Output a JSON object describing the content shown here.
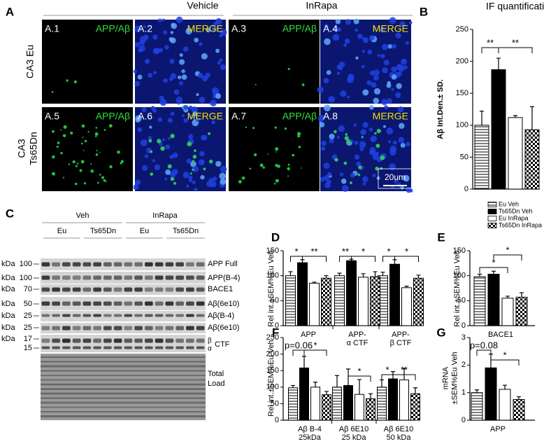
{
  "panel_a": {
    "letter": "A",
    "groups": [
      "Vehicle",
      "InRapa"
    ],
    "row_labels": [
      "CA3 Eu",
      "CA3\nTs65Dn"
    ],
    "tiles": [
      {
        "id": "A.1",
        "stain": "APP/Aβ"
      },
      {
        "id": "A.2",
        "stain": "MERGE"
      },
      {
        "id": "A.3",
        "stain": "APP/Aβ"
      },
      {
        "id": "A.4",
        "stain": "MERGE"
      },
      {
        "id": "A.5",
        "stain": "APP/Aβ"
      },
      {
        "id": "A.6",
        "stain": "MERGE"
      },
      {
        "id": "A.7",
        "stain": "APP/Aβ"
      },
      {
        "id": "A.8",
        "stain": "MERGE"
      }
    ],
    "scale_bar": "20um"
  },
  "panel_c": {
    "letter": "C",
    "treatments": [
      "Veh",
      "InRapa"
    ],
    "genotypes": [
      "Eu",
      "Ts65Dn",
      "Eu",
      "Ts65Dn"
    ],
    "unit": "kDa",
    "markers": [
      100,
      100,
      70,
      50,
      25,
      25,
      17,
      15
    ],
    "bands": [
      "APP Full",
      "APP(B-4)",
      "BACE1",
      "Aβ(6e10)",
      "Aβ(B-4)",
      "Aβ(6e10)"
    ],
    "ctf_marks": [
      "β",
      "α"
    ],
    "ctf": "CTF",
    "total_load": "Total\nLoad"
  },
  "chart_data": [
    {
      "type": "bar",
      "letter": "B",
      "title": "IF quantification",
      "y_label": "Aβ Int.Den.± SD.",
      "categories": [
        null
      ],
      "series": [
        {
          "name": "Eu Veh",
          "pattern": "hlines",
          "color": "#ffffff",
          "values": [
            100
          ],
          "errors": [
            22
          ]
        },
        {
          "name": "Ts65Dn Veh",
          "pattern": "solid",
          "color": "#000000",
          "values": [
            187
          ],
          "errors": [
            18
          ]
        },
        {
          "name": "Eu InRapa",
          "pattern": "solid",
          "color": "#ffffff",
          "values": [
            112
          ],
          "errors": [
            3
          ]
        },
        {
          "name": "Ts65Dn InRapa",
          "pattern": "checker",
          "color": "#ffffff",
          "values": [
            93
          ],
          "errors": [
            36
          ]
        }
      ],
      "ylim": [
        0,
        250
      ],
      "yticks": [
        0,
        50,
        100,
        150,
        200,
        250
      ],
      "annotations": [
        "**",
        "**"
      ],
      "legend": "bottom"
    },
    {
      "type": "bar",
      "letter": "D",
      "y_label": "Rel int.±SEM%Eu Veh",
      "categories": [
        "APP",
        "APP-\nα CTF",
        "APP-\nβ CTF"
      ],
      "series": [
        {
          "name": "Eu Veh",
          "pattern": "hlines",
          "color": "#ffffff",
          "values": [
            100,
            100,
            100
          ],
          "errors": [
            8,
            5,
            7
          ]
        },
        {
          "name": "Ts65Dn Veh",
          "pattern": "solid",
          "color": "#000000",
          "values": [
            126,
            130,
            123
          ],
          "errors": [
            6,
            3,
            9
          ]
        },
        {
          "name": "Eu InRapa",
          "pattern": "solid",
          "color": "#ffffff",
          "values": [
            85,
            97,
            76
          ],
          "errors": [
            2,
            7,
            3
          ]
        },
        {
          "name": "Ts65Dn InRapa",
          "pattern": "checker",
          "color": "#ffffff",
          "values": [
            95,
            98,
            95
          ],
          "errors": [
            5,
            10,
            6
          ]
        }
      ],
      "ylim": [
        0,
        150
      ],
      "yticks": [
        0,
        50,
        100,
        150
      ],
      "annotations": [
        "*",
        "**",
        "**",
        "*",
        "*",
        "*"
      ]
    },
    {
      "type": "bar",
      "letter": "E",
      "y_label": "Rel int.±SEM%Eu Veh",
      "categories": [
        "BACE1"
      ],
      "series": [
        {
          "name": "Eu Veh",
          "pattern": "hlines",
          "color": "#ffffff",
          "values": [
            98
          ],
          "errors": [
            5
          ]
        },
        {
          "name": "Ts65Dn Veh",
          "pattern": "solid",
          "color": "#000000",
          "values": [
            103
          ],
          "errors": [
            6
          ]
        },
        {
          "name": "Eu InRapa",
          "pattern": "solid",
          "color": "#ffffff",
          "values": [
            55
          ],
          "errors": [
            4
          ]
        },
        {
          "name": "Ts65Dn InRapa",
          "pattern": "checker",
          "color": "#ffffff",
          "values": [
            57
          ],
          "errors": [
            9
          ]
        }
      ],
      "ylim": [
        0,
        150
      ],
      "yticks": [
        0,
        50,
        100,
        150
      ],
      "annotations": [
        "*",
        "*"
      ]
    },
    {
      "type": "bar",
      "letter": "F",
      "y_label": "Rel int.±SEM%Eu Veh",
      "categories": [
        "Aβ B-4\n25kDa",
        "Aβ 6E10\n25 kDa",
        "Aβ 6E10\n50 kDa"
      ],
      "series": [
        {
          "name": "Eu Veh",
          "pattern": "hlines",
          "color": "#ffffff",
          "values": [
            98,
            100,
            100
          ],
          "errors": [
            7,
            35,
            22
          ]
        },
        {
          "name": "Ts65Dn Veh",
          "pattern": "solid",
          "color": "#000000",
          "values": [
            158,
            105,
            125
          ],
          "errors": [
            35,
            50,
            22
          ]
        },
        {
          "name": "Eu InRapa",
          "pattern": "solid",
          "color": "#ffffff",
          "values": [
            100,
            78,
            122
          ],
          "errors": [
            15,
            45,
            35
          ]
        },
        {
          "name": "Ts65Dn InRapa",
          "pattern": "checker",
          "color": "#ffffff",
          "values": [
            77,
            65,
            80
          ],
          "errors": [
            10,
            15,
            18
          ]
        }
      ],
      "ylim": [
        0,
        250
      ],
      "yticks": [
        0,
        50,
        100,
        150,
        200,
        250
      ],
      "annotations": [
        "p=0.06",
        "*",
        "*",
        "*",
        "**"
      ]
    },
    {
      "type": "bar",
      "letter": "G",
      "y_label": "mRNA\n±SEM%Eu Veh",
      "categories": [
        "APP"
      ],
      "series": [
        {
          "name": "Eu Veh",
          "pattern": "hlines",
          "color": "#ffffff",
          "values": [
            1.0
          ],
          "errors": [
            0.1
          ]
        },
        {
          "name": "Ts65Dn Veh",
          "pattern": "solid",
          "color": "#000000",
          "values": [
            1.9
          ],
          "errors": [
            0.5
          ]
        },
        {
          "name": "Eu InRapa",
          "pattern": "solid",
          "color": "#ffffff",
          "values": [
            1.12
          ],
          "errors": [
            0.15
          ]
        },
        {
          "name": "Ts65Dn InRapa",
          "pattern": "checker",
          "color": "#ffffff",
          "values": [
            0.75
          ],
          "errors": [
            0.1
          ]
        }
      ],
      "ylim": [
        0,
        3
      ],
      "yticks": [
        0,
        1,
        2,
        3
      ],
      "annotations": [
        "p=0.08",
        "*"
      ]
    }
  ]
}
